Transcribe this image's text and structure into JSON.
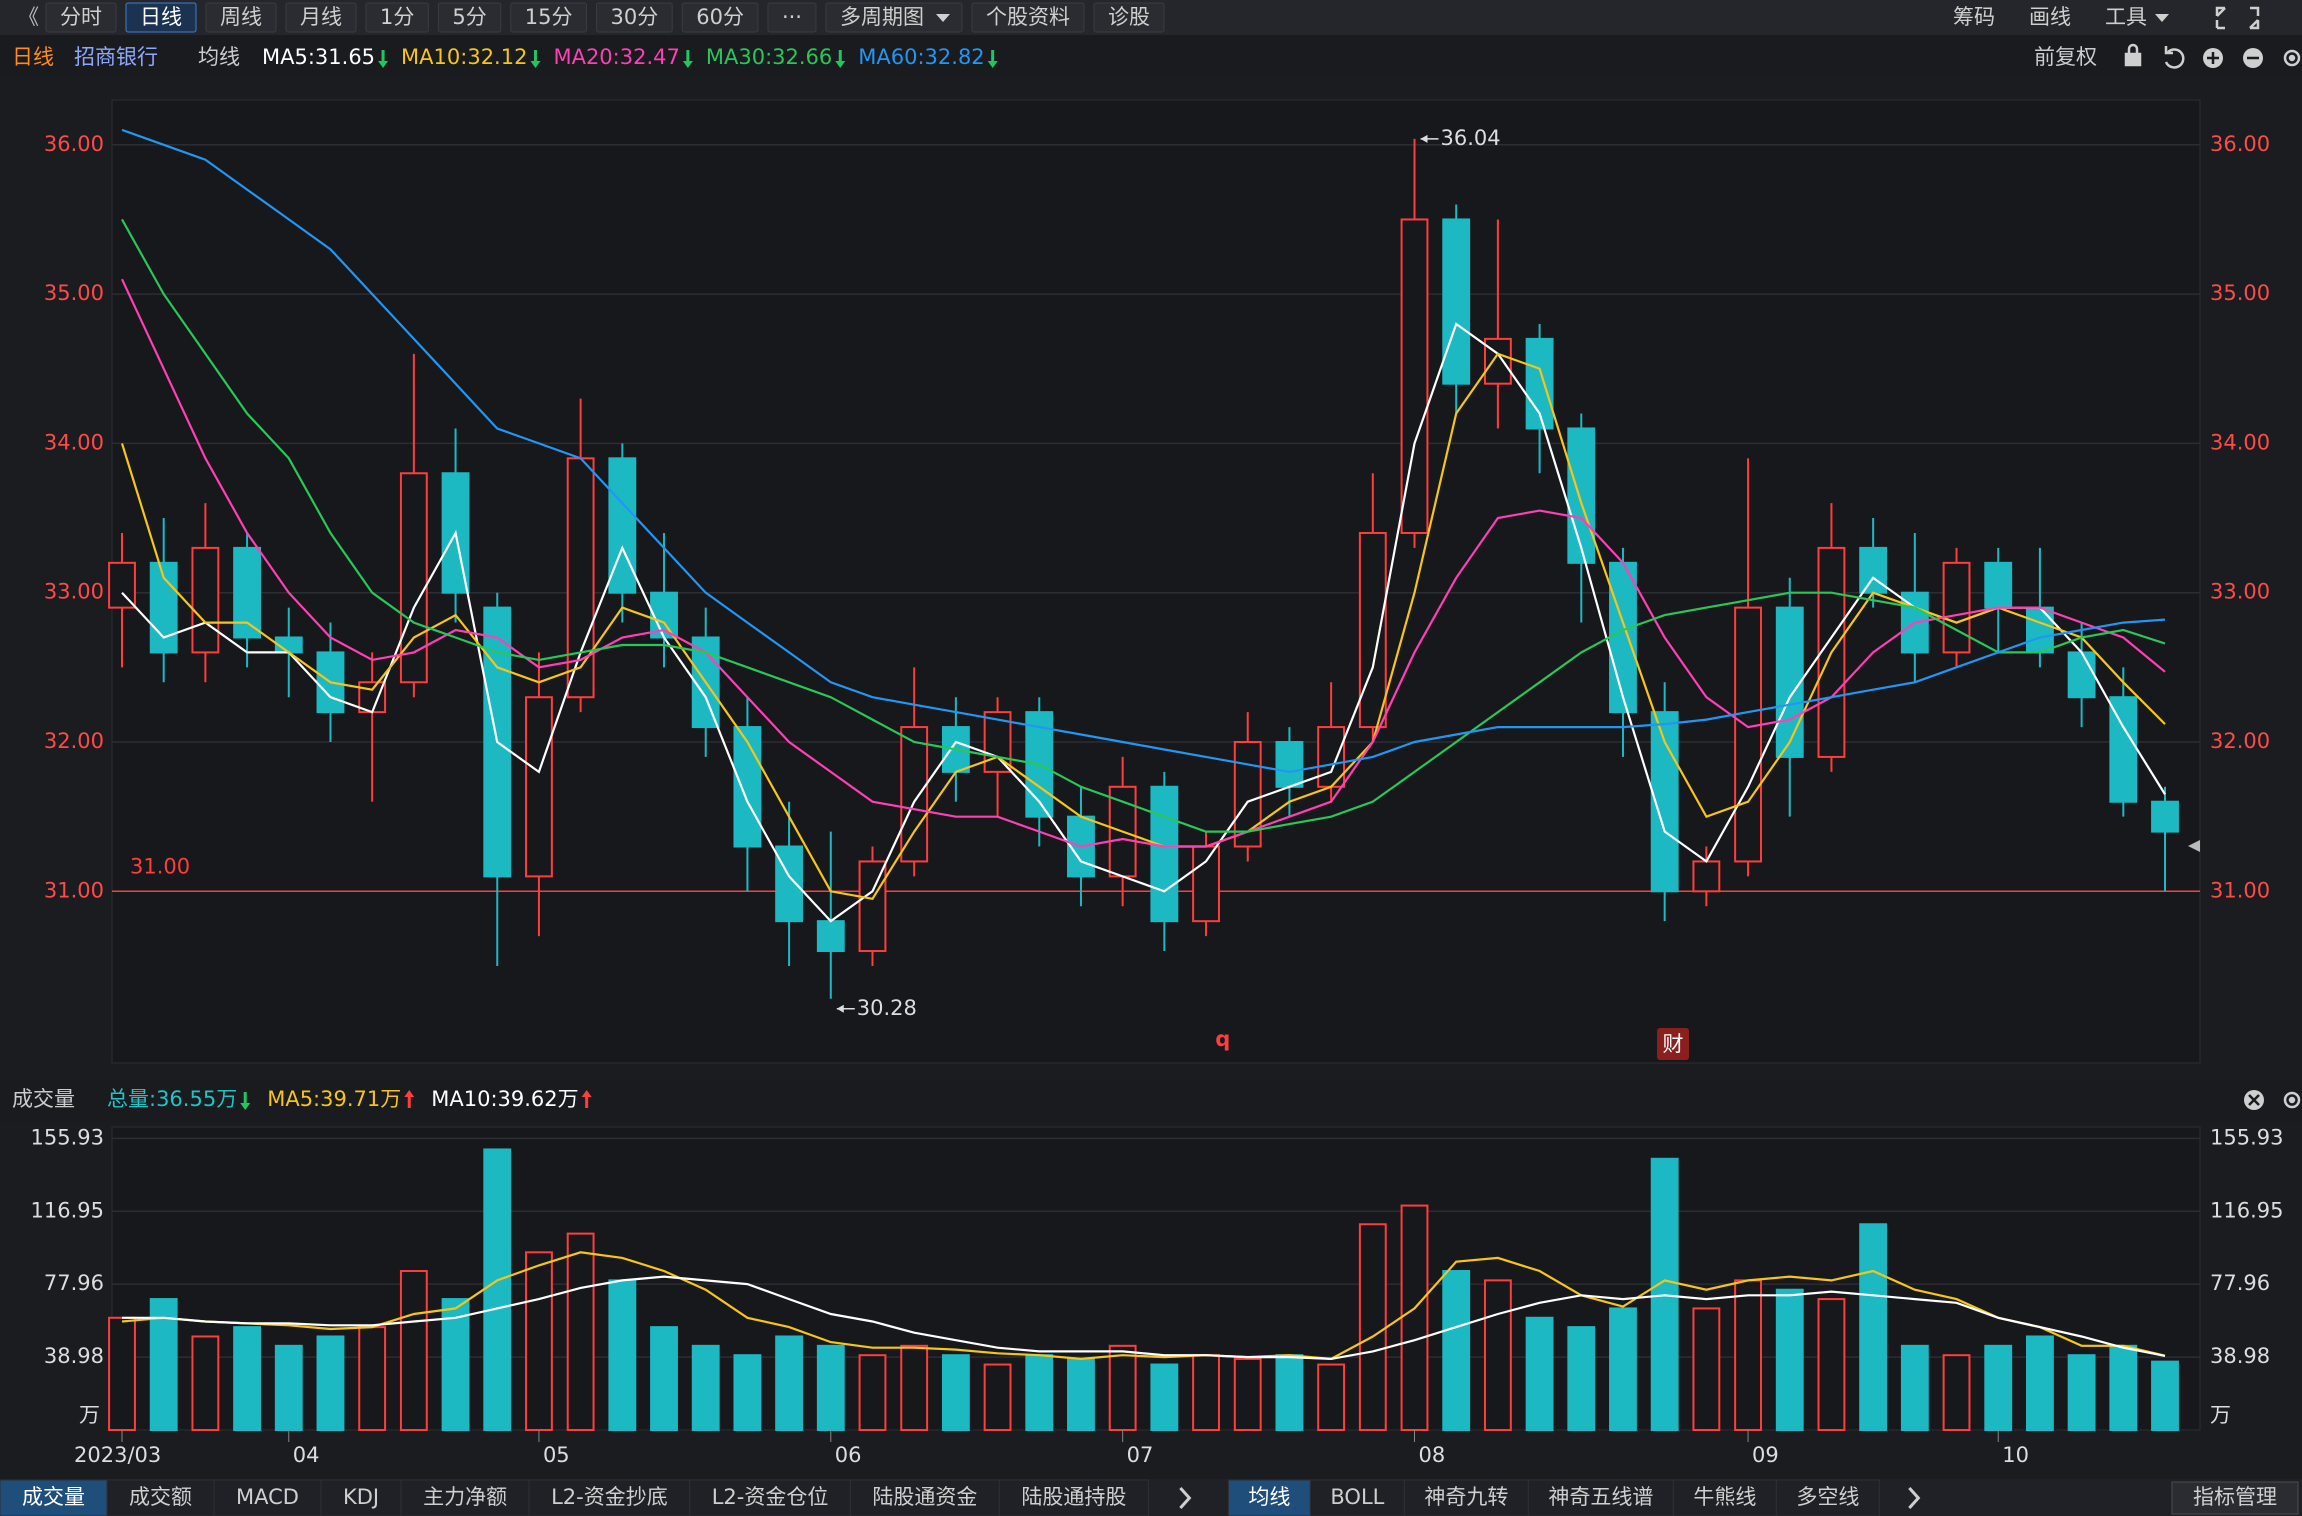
{
  "toolbar": {
    "back": "《",
    "left": [
      "分时",
      "日线",
      "周线",
      "月线",
      "1分",
      "5分",
      "15分",
      "30分",
      "60分",
      "···",
      "多周期图",
      "个股资料",
      "诊股"
    ],
    "selected": 1,
    "dropdown": [
      10
    ],
    "right": [
      "筹码",
      "画线",
      "工具"
    ],
    "right_dropdown": [
      2
    ]
  },
  "header": {
    "period": "日线",
    "stock": "招商银行",
    "indicator": "均线",
    "adjust": "前复权"
  },
  "chart_data": [
    {
      "type": "candlestick",
      "candles": [
        [
          32.9,
          33.4,
          32.5,
          33.2
        ],
        [
          33.2,
          33.5,
          32.4,
          32.6
        ],
        [
          32.6,
          33.6,
          32.4,
          33.3
        ],
        [
          33.3,
          33.4,
          32.5,
          32.7
        ],
        [
          32.7,
          32.9,
          32.3,
          32.6
        ],
        [
          32.6,
          32.8,
          32.0,
          32.2
        ],
        [
          32.2,
          32.6,
          31.6,
          32.4
        ],
        [
          32.4,
          34.6,
          32.3,
          33.8
        ],
        [
          33.8,
          34.1,
          32.8,
          33.0
        ],
        [
          32.9,
          33.0,
          30.5,
          31.1
        ],
        [
          31.1,
          32.6,
          30.7,
          32.3
        ],
        [
          32.3,
          34.3,
          32.2,
          33.9
        ],
        [
          33.9,
          34.0,
          32.8,
          33.0
        ],
        [
          33.0,
          33.4,
          32.5,
          32.7
        ],
        [
          32.7,
          32.9,
          31.9,
          32.1
        ],
        [
          32.1,
          32.3,
          31.0,
          31.3
        ],
        [
          31.3,
          31.6,
          30.5,
          30.8
        ],
        [
          30.8,
          31.4,
          30.28,
          30.6
        ],
        [
          30.6,
          31.3,
          30.5,
          31.2
        ],
        [
          31.2,
          32.5,
          31.1,
          32.1
        ],
        [
          32.1,
          32.3,
          31.6,
          31.8
        ],
        [
          31.8,
          32.3,
          31.5,
          32.2
        ],
        [
          32.2,
          32.3,
          31.3,
          31.5
        ],
        [
          31.5,
          31.7,
          30.9,
          31.1
        ],
        [
          31.1,
          31.9,
          30.9,
          31.7
        ],
        [
          31.7,
          31.8,
          30.6,
          30.8
        ],
        [
          30.8,
          31.4,
          30.7,
          31.3
        ],
        [
          31.3,
          32.2,
          31.2,
          32.0
        ],
        [
          32.0,
          32.1,
          31.5,
          31.7
        ],
        [
          31.7,
          32.4,
          31.6,
          32.1
        ],
        [
          32.1,
          33.8,
          32.0,
          33.4
        ],
        [
          33.4,
          36.04,
          33.3,
          35.5
        ],
        [
          35.5,
          35.6,
          34.2,
          34.4
        ],
        [
          34.4,
          35.5,
          34.1,
          34.7
        ],
        [
          34.7,
          34.8,
          33.8,
          34.1
        ],
        [
          34.1,
          34.2,
          32.8,
          33.2
        ],
        [
          33.2,
          33.3,
          31.9,
          32.2
        ],
        [
          32.2,
          32.4,
          30.8,
          31.0
        ],
        [
          31.0,
          31.3,
          30.9,
          31.2
        ],
        [
          31.2,
          33.9,
          31.1,
          32.9
        ],
        [
          32.9,
          33.1,
          31.5,
          31.9
        ],
        [
          31.9,
          33.6,
          31.8,
          33.3
        ],
        [
          33.3,
          33.5,
          32.9,
          33.0
        ],
        [
          33.0,
          33.4,
          32.4,
          32.6
        ],
        [
          32.6,
          33.3,
          32.5,
          33.2
        ],
        [
          33.2,
          33.3,
          32.6,
          32.9
        ],
        [
          32.9,
          33.3,
          32.5,
          32.6
        ],
        [
          32.6,
          32.8,
          32.1,
          32.3
        ],
        [
          32.3,
          32.5,
          31.5,
          31.6
        ],
        [
          31.6,
          31.7,
          31.0,
          31.4
        ]
      ],
      "up_color": "#ff3d3d",
      "down_color": "#1cb9c3",
      "series": [
        {
          "name": "MA5:31.65",
          "color": "#ffffff",
          "trend": "down",
          "values": [
            33.0,
            32.7,
            32.8,
            32.6,
            32.6,
            32.3,
            32.2,
            32.9,
            33.4,
            32.0,
            31.8,
            32.6,
            33.3,
            32.7,
            32.3,
            31.6,
            31.1,
            30.8,
            31.0,
            31.6,
            32.0,
            31.9,
            31.6,
            31.2,
            31.1,
            31.0,
            31.2,
            31.6,
            31.7,
            31.8,
            32.5,
            34.0,
            34.8,
            34.6,
            34.2,
            33.3,
            32.3,
            31.4,
            31.2,
            31.7,
            32.3,
            32.7,
            33.1,
            32.9,
            32.8,
            32.9,
            32.9,
            32.6,
            32.1,
            31.65
          ]
        },
        {
          "name": "MA10:32.12",
          "color": "#f5c518",
          "trend": "down",
          "values": [
            34.0,
            33.1,
            32.8,
            32.8,
            32.6,
            32.4,
            32.35,
            32.7,
            32.85,
            32.5,
            32.4,
            32.5,
            32.9,
            32.8,
            32.4,
            32.0,
            31.5,
            31.0,
            30.95,
            31.4,
            31.8,
            31.9,
            31.7,
            31.5,
            31.4,
            31.3,
            31.3,
            31.4,
            31.6,
            31.7,
            32.0,
            33.0,
            34.2,
            34.6,
            34.5,
            33.6,
            32.8,
            32.0,
            31.5,
            31.6,
            32.0,
            32.6,
            33.0,
            32.9,
            32.8,
            32.9,
            32.8,
            32.7,
            32.4,
            32.12
          ]
        },
        {
          "name": "MA20:32.47",
          "color": "#ff3fb4",
          "trend": "down",
          "values": [
            35.1,
            34.5,
            33.9,
            33.4,
            33.0,
            32.7,
            32.55,
            32.6,
            32.75,
            32.7,
            32.5,
            32.55,
            32.7,
            32.75,
            32.6,
            32.3,
            32.0,
            31.8,
            31.6,
            31.55,
            31.5,
            31.5,
            31.4,
            31.3,
            31.35,
            31.3,
            31.3,
            31.4,
            31.5,
            31.6,
            32.0,
            32.6,
            33.1,
            33.5,
            33.55,
            33.5,
            33.2,
            32.7,
            32.3,
            32.1,
            32.15,
            32.3,
            32.6,
            32.8,
            32.85,
            32.9,
            32.9,
            32.8,
            32.7,
            32.47
          ]
        },
        {
          "name": "MA30:32.66",
          "color": "#27c75a",
          "trend": "down",
          "values": [
            35.5,
            35.0,
            34.6,
            34.2,
            33.9,
            33.4,
            33.0,
            32.8,
            32.7,
            32.6,
            32.55,
            32.6,
            32.65,
            32.65,
            32.6,
            32.5,
            32.4,
            32.3,
            32.15,
            32.0,
            31.95,
            31.9,
            31.85,
            31.7,
            31.6,
            31.5,
            31.4,
            31.4,
            31.45,
            31.5,
            31.6,
            31.8,
            32.0,
            32.2,
            32.4,
            32.6,
            32.75,
            32.85,
            32.9,
            32.95,
            33.0,
            33.0,
            32.95,
            32.9,
            32.75,
            32.6,
            32.6,
            32.7,
            32.75,
            32.66
          ]
        },
        {
          "name": "MA60:32.82",
          "color": "#2196f3",
          "trend": "down",
          "values": [
            36.1,
            36.0,
            35.9,
            35.7,
            35.5,
            35.3,
            35.0,
            34.7,
            34.4,
            34.1,
            34.0,
            33.9,
            33.6,
            33.3,
            33.0,
            32.8,
            32.6,
            32.4,
            32.3,
            32.25,
            32.2,
            32.15,
            32.1,
            32.05,
            32.0,
            31.95,
            31.9,
            31.85,
            31.8,
            31.85,
            31.9,
            32.0,
            32.05,
            32.1,
            32.1,
            32.1,
            32.1,
            32.12,
            32.15,
            32.2,
            32.25,
            32.3,
            32.35,
            32.4,
            32.5,
            32.6,
            32.7,
            32.75,
            32.8,
            32.82
          ]
        }
      ],
      "ylim": [
        29.85,
        36.3
      ],
      "yticks": [
        {
          "value": 31,
          "label": "31.00"
        },
        {
          "value": 32,
          "label": "32.00"
        },
        {
          "value": 33,
          "label": "33.00"
        },
        {
          "value": 34,
          "label": "34.00"
        },
        {
          "value": 35,
          "label": "35.00"
        },
        {
          "value": 36,
          "label": "36.00"
        }
      ],
      "grid": true,
      "ref_line": {
        "value": 31,
        "label": "31.00",
        "color": "#ff3d3d"
      },
      "annotations": [
        "36.04",
        "30.28"
      ],
      "markers": [
        "q",
        "财"
      ]
    },
    {
      "type": "bar",
      "title": "成交量",
      "total": "总量:36.55万",
      "total_trend": "down",
      "values": [
        60,
        70,
        50,
        55,
        45,
        50,
        55,
        85,
        70,
        150,
        95,
        105,
        80,
        55,
        45,
        40,
        50,
        45,
        40,
        45,
        40,
        35,
        40,
        38,
        45,
        35,
        40,
        38,
        40,
        35,
        110,
        120,
        85,
        80,
        60,
        55,
        65,
        145,
        65,
        80,
        75,
        70,
        110,
        45,
        40,
        45,
        50,
        40,
        45,
        36.55
      ],
      "series": [
        {
          "name": "MA5:39.71万",
          "color": "#f5c518",
          "trend": "up",
          "values": [
            58,
            60,
            58,
            57,
            56,
            54,
            55,
            62,
            65,
            80,
            88,
            95,
            92,
            85,
            75,
            60,
            55,
            47,
            44,
            44,
            43,
            41,
            40,
            38,
            40,
            39,
            40,
            39,
            40,
            38,
            50,
            65,
            90,
            92,
            85,
            72,
            66,
            80,
            75,
            80,
            82,
            80,
            85,
            75,
            70,
            60,
            55,
            45,
            45,
            39.71
          ]
        },
        {
          "name": "MA10:39.62万",
          "color": "#ffffff",
          "trend": "up",
          "values": [
            60,
            60,
            58,
            57,
            57,
            56,
            56,
            58,
            60,
            65,
            70,
            76,
            80,
            82,
            80,
            78,
            70,
            62,
            58,
            52,
            48,
            44,
            42,
            42,
            42,
            40,
            40,
            39,
            39,
            38,
            42,
            48,
            55,
            62,
            68,
            72,
            70,
            72,
            70,
            72,
            72,
            74,
            72,
            70,
            68,
            60,
            55,
            50,
            44,
            39.62
          ]
        }
      ],
      "ylim": [
        0,
        162
      ],
      "yticks": [
        38.98,
        77.96,
        116.95,
        155.93
      ],
      "grid": true,
      "unit": "万",
      "categories": [
        "2023/03",
        null,
        null,
        null,
        "04",
        null,
        null,
        null,
        null,
        null,
        "05",
        null,
        null,
        null,
        null,
        null,
        null,
        "06",
        null,
        null,
        null,
        null,
        null,
        null,
        "07",
        null,
        null,
        null,
        null,
        null,
        null,
        "08",
        null,
        null,
        null,
        null,
        null,
        null,
        null,
        "09",
        null,
        null,
        null,
        null,
        null,
        "10",
        null,
        null,
        null,
        null
      ]
    }
  ],
  "bottom_tabs": {
    "left": [
      "成交量",
      "成交额",
      "MACD",
      "KDJ",
      "主力净额",
      "L2-资金抄底",
      "L2-资金仓位",
      "陆股通资金",
      "陆股通持股"
    ],
    "left_selected": 0,
    "right": [
      "均线",
      "BOLL",
      "神奇九转",
      "神奇五线谱",
      "牛熊线",
      "多空线"
    ],
    "right_selected": 0,
    "manage": "指标管理"
  }
}
